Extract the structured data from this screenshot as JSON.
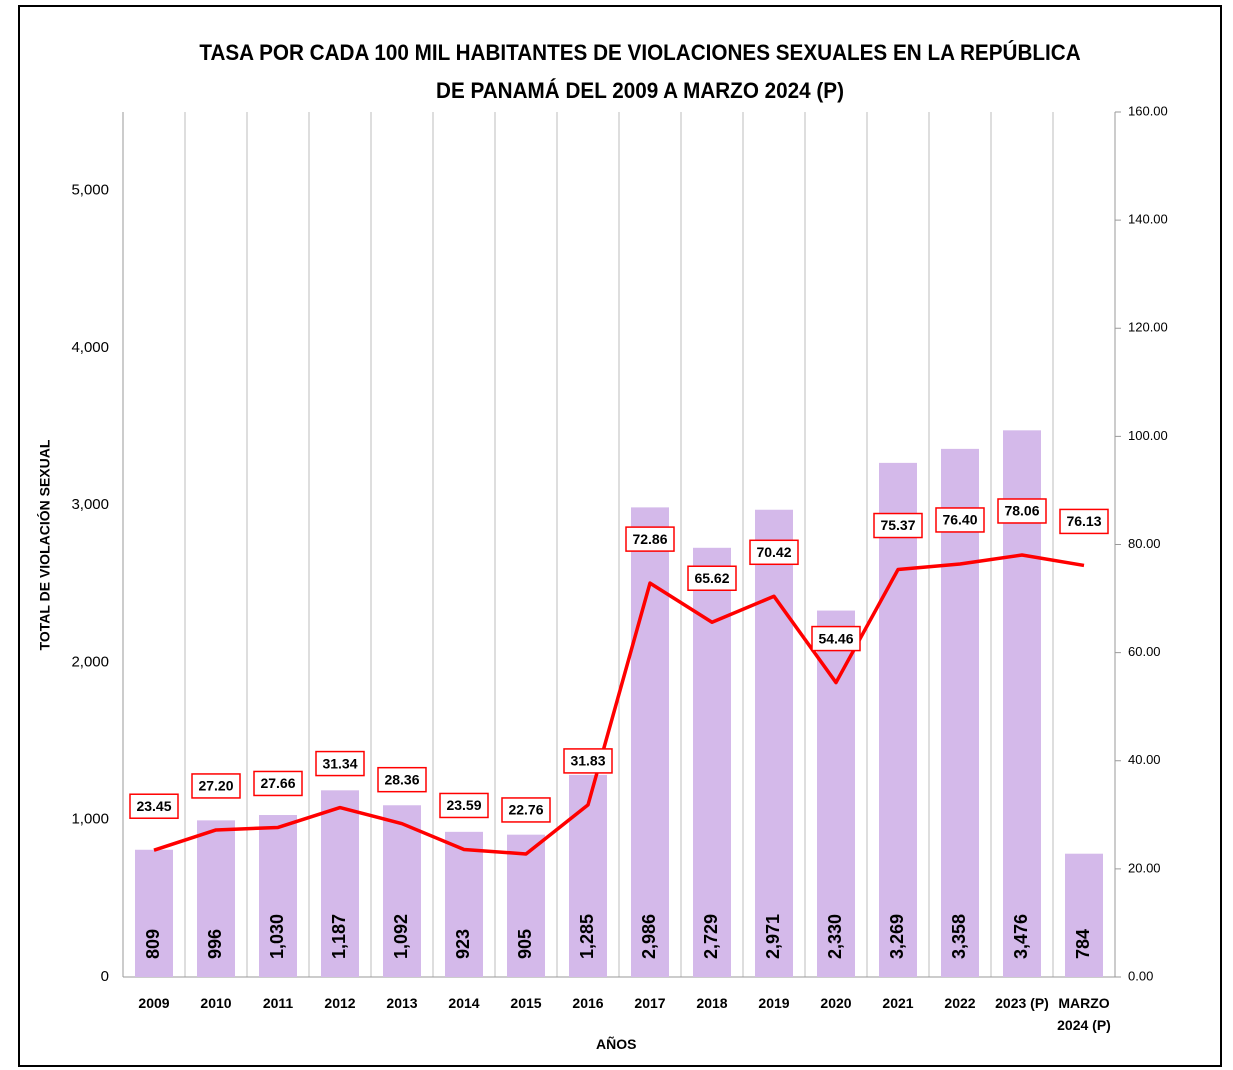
{
  "chart_data": {
    "type": "bar_line",
    "title": "TASA POR CADA 100 MIL HABITANTES DE VIOLACIONES SEXUALES EN LA REPÚBLICA DE PANAMÁ DEL 2009 A MARZO 2024 (P)",
    "xlabel": "AÑOS",
    "ylabel": "TOTAL DE VIOLACIÓN SEXUAL",
    "categories": [
      "2009",
      "2010",
      "2011",
      "2012",
      "2013",
      "2014",
      "2015",
      "2016",
      "2017",
      "2018",
      "2019",
      "2020",
      "2021",
      "2022",
      "2023 (P)",
      "MARZO 2024 (P)"
    ],
    "series": [
      {
        "name": "Total",
        "type": "bar",
        "color": "#d4b9ea",
        "values": [
          809,
          996,
          1030,
          1187,
          1092,
          923,
          905,
          1285,
          2986,
          2729,
          2971,
          2330,
          3269,
          3358,
          3476,
          784
        ],
        "value_labels": [
          "809",
          "996",
          "1,030",
          "1,187",
          "1,092",
          "923",
          "905",
          "1,285",
          "2,986",
          "2,729",
          "2,971",
          "2,330",
          "3,269",
          "3,358",
          "3,476",
          "784"
        ]
      },
      {
        "name": "Tasa",
        "type": "line",
        "axis": "y2",
        "color": "#ff0000",
        "values": [
          23.45,
          27.2,
          27.66,
          31.34,
          28.36,
          23.59,
          22.76,
          31.83,
          72.86,
          65.62,
          70.42,
          54.46,
          75.37,
          76.4,
          78.06,
          76.13
        ],
        "value_labels": [
          "23.45",
          "27.20",
          "27.66",
          "31.34",
          "28.36",
          "23.59",
          "22.76",
          "31.83",
          "72.86",
          "65.62",
          "70.42",
          "54.46",
          "75.37",
          "76.40",
          "78.06",
          "76.13"
        ]
      }
    ],
    "ylim": [
      0,
      5500
    ],
    "yticks": [
      0,
      {
        "value": 1000,
        "label": "1,000"
      },
      {
        "value": 2000,
        "label": "2,000"
      },
      {
        "value": 3000,
        "label": "3,000"
      },
      {
        "value": 4000,
        "label": "4,000"
      },
      {
        "value": 5000,
        "label": "5,000"
      }
    ],
    "y2lim": [
      0,
      160
    ],
    "y2ticks": [
      {
        "value": 0,
        "label": "0.00"
      },
      {
        "value": 20,
        "label": "20.00"
      },
      {
        "value": 40,
        "label": "40.00"
      },
      {
        "value": 60,
        "label": "60.00"
      },
      {
        "value": 80,
        "label": "80.00"
      },
      {
        "value": 100,
        "label": "100.00"
      },
      {
        "value": 120,
        "label": "120.00"
      },
      {
        "value": 140,
        "label": "140.00"
      },
      {
        "value": 160,
        "label": "160.00"
      }
    ],
    "grid": "x"
  }
}
